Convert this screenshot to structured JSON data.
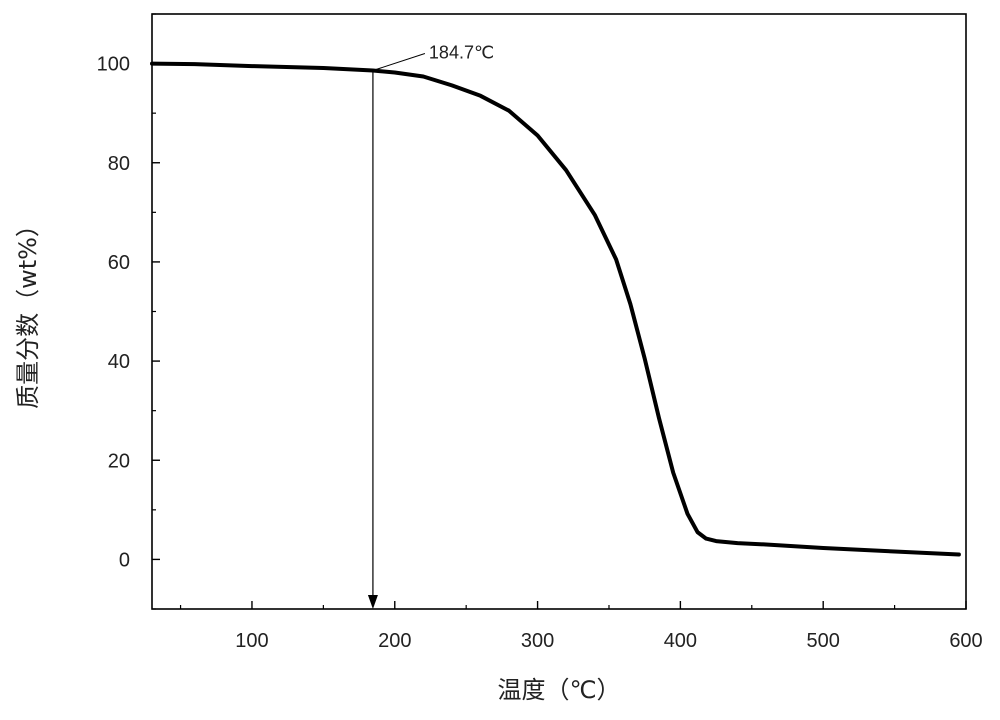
{
  "chart_data": {
    "type": "line",
    "title": "",
    "xlabel": "温度（℃）",
    "ylabel": "质量分数（wt%）",
    "xlim": [
      30,
      600
    ],
    "ylim": [
      -10,
      110
    ],
    "xticks": [
      100,
      200,
      300,
      400,
      500,
      600
    ],
    "yticks": [
      0,
      20,
      40,
      60,
      80,
      100
    ],
    "grid": false,
    "series": [
      {
        "name": "",
        "x": [
          30,
          60,
          100,
          150,
          184.7,
          200,
          220,
          240,
          260,
          280,
          300,
          320,
          340,
          355,
          365,
          375,
          385,
          395,
          405,
          412,
          418,
          425,
          440,
          460,
          500,
          550,
          595
        ],
        "y": [
          100,
          99.9,
          99.5,
          99.1,
          98.6,
          98.2,
          97.4,
          95.6,
          93.5,
          90.5,
          85.5,
          78.5,
          69.5,
          60.5,
          51.5,
          40.5,
          28.5,
          17.5,
          9.2,
          5.5,
          4.2,
          3.7,
          3.3,
          3.0,
          2.3,
          1.6,
          1.0
        ],
        "color": "#000000"
      }
    ],
    "annotations": [
      {
        "text": "184.7℃",
        "x": 184.7,
        "y": 98.6,
        "arrow_to_y": -10
      }
    ]
  }
}
